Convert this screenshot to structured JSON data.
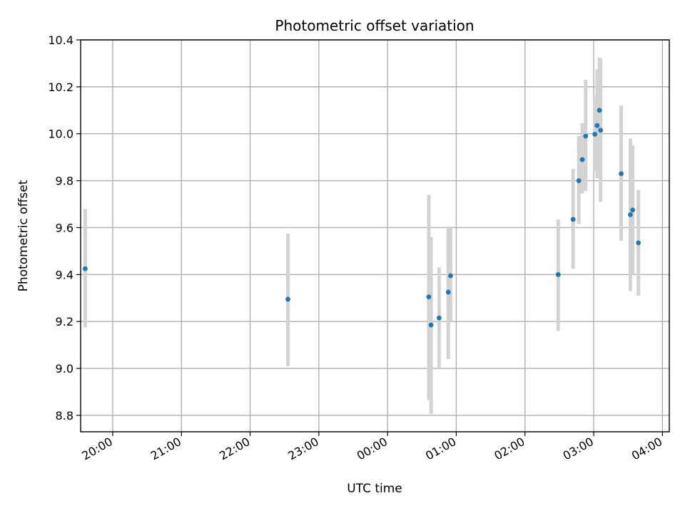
{
  "chart_data": {
    "type": "scatter",
    "title": "Photometric offset variation",
    "xlabel": "UTC time",
    "ylabel": "Photometric offset",
    "x_start": "19:36",
    "x_end": "04:02",
    "ylim": [
      8.73,
      10.4
    ],
    "grid": true,
    "x_ticks": [
      "20:00",
      "21:00",
      "22:00",
      "23:00",
      "00:00",
      "01:00",
      "02:00",
      "03:00",
      "04:00"
    ],
    "y_ticks": [
      "8.8",
      "9.0",
      "9.2",
      "9.4",
      "9.6",
      "9.8",
      "10.0",
      "10.2",
      "10.4"
    ],
    "error_bar_color": "#d3d3d3",
    "marker_color": "#1f77b4",
    "points": [
      {
        "x": "19:36",
        "y": 9.425,
        "lo": 9.175,
        "hi": 9.68
      },
      {
        "x": "22:33",
        "y": 9.295,
        "lo": 9.01,
        "hi": 9.575
      },
      {
        "x": "00:36",
        "y": 9.305,
        "lo": 8.865,
        "hi": 9.74
      },
      {
        "x": "00:38",
        "y": 9.185,
        "lo": 8.805,
        "hi": 9.56
      },
      {
        "x": "00:45",
        "y": 9.215,
        "lo": 9.0,
        "hi": 9.43
      },
      {
        "x": "00:53",
        "y": 9.325,
        "lo": 9.04,
        "hi": 9.605
      },
      {
        "x": "00:55",
        "y": 9.395,
        "lo": 9.2,
        "hi": 9.6
      },
      {
        "x": "02:29",
        "y": 9.4,
        "lo": 9.16,
        "hi": 9.635
      },
      {
        "x": "02:42",
        "y": 9.635,
        "lo": 9.425,
        "hi": 9.85
      },
      {
        "x": "02:47",
        "y": 9.8,
        "lo": 9.615,
        "hi": 9.99
      },
      {
        "x": "02:50",
        "y": 9.89,
        "lo": 9.745,
        "hi": 10.045
      },
      {
        "x": "02:53",
        "y": 9.99,
        "lo": 9.755,
        "hi": 10.23
      },
      {
        "x": "03:01",
        "y": 9.998,
        "lo": 9.84,
        "hi": 10.16
      },
      {
        "x": "03:03",
        "y": 10.035,
        "lo": 9.81,
        "hi": 10.275
      },
      {
        "x": "03:05",
        "y": 10.1,
        "lo": 9.875,
        "hi": 10.325
      },
      {
        "x": "03:06",
        "y": 10.015,
        "lo": 9.71,
        "hi": 10.32
      },
      {
        "x": "03:24",
        "y": 9.83,
        "lo": 9.545,
        "hi": 10.12
      },
      {
        "x": "03:32",
        "y": 9.655,
        "lo": 9.33,
        "hi": 9.98
      },
      {
        "x": "03:34",
        "y": 9.675,
        "lo": 9.4,
        "hi": 9.95
      },
      {
        "x": "03:39",
        "y": 9.535,
        "lo": 9.31,
        "hi": 9.76
      }
    ]
  }
}
